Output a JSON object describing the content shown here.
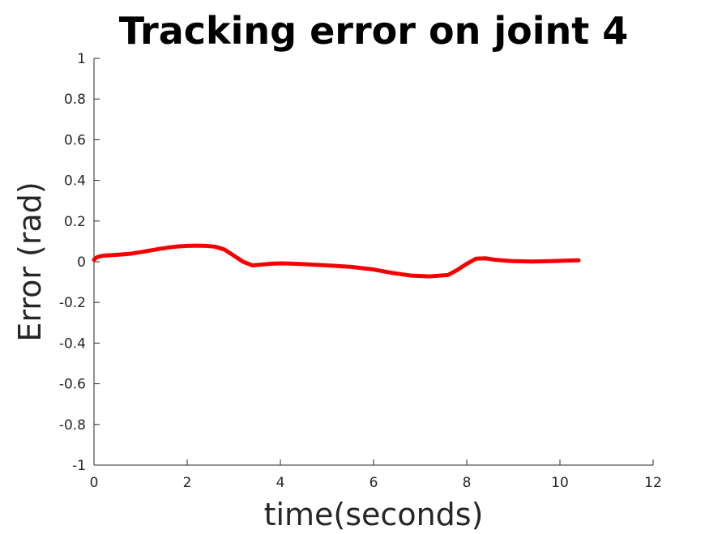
{
  "chart_data": {
    "type": "line",
    "title": "Tracking error on joint 4",
    "xlabel": "time(seconds)",
    "ylabel": "Error (rad)",
    "xlim": [
      0,
      12
    ],
    "ylim": [
      -1,
      1
    ],
    "xticks": [
      "0",
      "2",
      "4",
      "6",
      "8",
      "10",
      "12"
    ],
    "yticks": [
      "-1",
      "-0.8",
      "-0.6",
      "-0.4",
      "-0.2",
      "0",
      "0.2",
      "0.4",
      "0.6",
      "0.8",
      "1"
    ],
    "grid": false,
    "series": [
      {
        "color": "#ff0000",
        "x": [
          0,
          0.05,
          0.1,
          0.2,
          0.4,
          0.6,
          0.8,
          1.0,
          1.2,
          1.4,
          1.6,
          1.8,
          2.0,
          2.2,
          2.4,
          2.6,
          2.8,
          3.0,
          3.2,
          3.4,
          3.6,
          3.8,
          4.0,
          4.2,
          4.5,
          5.0,
          5.5,
          6.0,
          6.4,
          6.8,
          7.2,
          7.6,
          7.8,
          8.0,
          8.2,
          8.4,
          8.6,
          8.8,
          9.0,
          9.4,
          9.8,
          10.2,
          10.4
        ],
        "y": [
          0.01,
          0.02,
          0.025,
          0.03,
          0.033,
          0.036,
          0.04,
          0.047,
          0.055,
          0.063,
          0.07,
          0.075,
          0.078,
          0.079,
          0.078,
          0.074,
          0.06,
          0.03,
          0.0,
          -0.018,
          -0.014,
          -0.01,
          -0.008,
          -0.009,
          -0.012,
          -0.018,
          -0.025,
          -0.038,
          -0.055,
          -0.068,
          -0.072,
          -0.065,
          -0.04,
          -0.01,
          0.015,
          0.017,
          0.01,
          0.006,
          0.003,
          0.001,
          0.003,
          0.006,
          0.007
        ]
      }
    ]
  }
}
